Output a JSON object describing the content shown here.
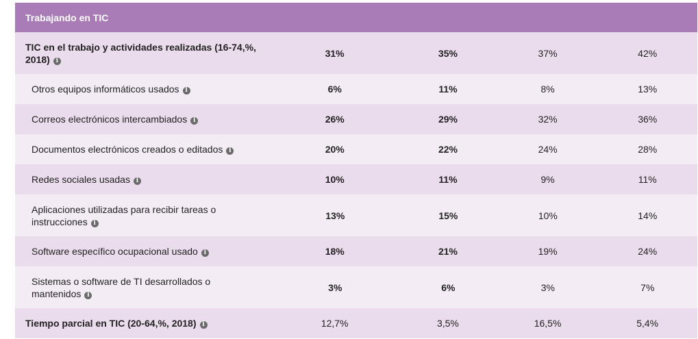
{
  "section_title": "Trabajando en TIC",
  "info_glyph": "i",
  "rows": [
    {
      "label": "TIC en el trabajo y actividades realizadas (16-74,%, 2018)",
      "values": [
        "31%",
        "35%",
        "37%",
        "42%"
      ]
    },
    {
      "label": "Otros equipos informáticos usados",
      "values": [
        "6%",
        "11%",
        "8%",
        "13%"
      ]
    },
    {
      "label": "Correos electrónicos intercambiados",
      "values": [
        "26%",
        "29%",
        "32%",
        "36%"
      ]
    },
    {
      "label": "Documentos electrónicos creados o editados",
      "values": [
        "20%",
        "22%",
        "24%",
        "28%"
      ]
    },
    {
      "label": "Redes sociales usadas",
      "values": [
        "10%",
        "11%",
        "9%",
        "11%"
      ]
    },
    {
      "label": "Aplicaciones utilizadas para recibir tareas o instrucciones",
      "values": [
        "13%",
        "15%",
        "10%",
        "14%"
      ]
    },
    {
      "label": "Software específico ocupacional usado",
      "values": [
        "18%",
        "21%",
        "19%",
        "24%"
      ]
    },
    {
      "label": "Sistemas o software de TI desarrollados o mantenidos",
      "values": [
        "3%",
        "6%",
        "3%",
        "7%"
      ]
    },
    {
      "label": "Tiempo parcial en TIC (20-64,%, 2018)",
      "values": [
        "12,7%",
        "3,5%",
        "16,5%",
        "5,4%"
      ]
    }
  ],
  "colors": {
    "header": "#a97cb7",
    "row_odd": "#eadcec",
    "row_even": "#f3ecf5",
    "text": "#222222"
  }
}
